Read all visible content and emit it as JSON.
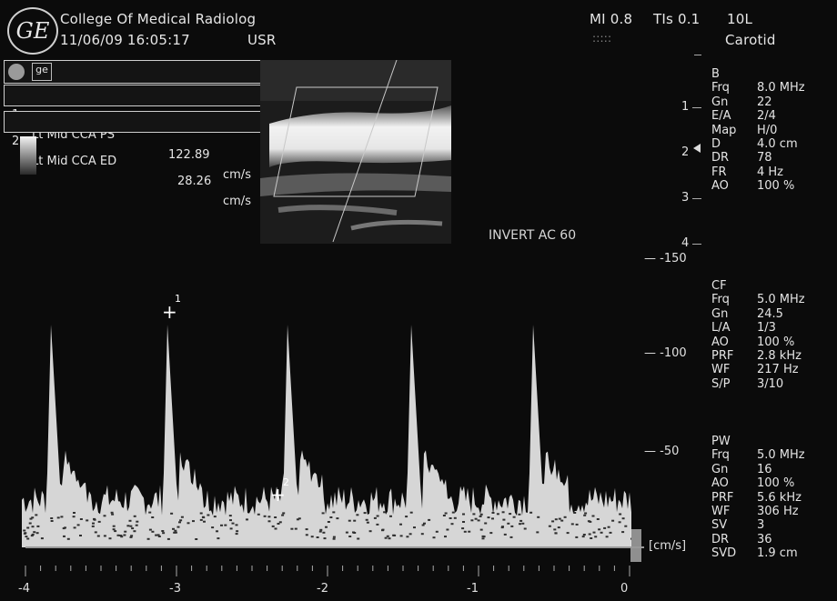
{
  "header": {
    "institution": "College Of Medical Radiolog",
    "datetime": "11/06/09 16:05:17",
    "user": "USR",
    "mi": "MI 0.8",
    "tis": "TIs 0.1",
    "probe": "10L",
    "dots": ":::::",
    "preset": "Carotid",
    "logo": "GE"
  },
  "measurements": [
    {
      "index": "1",
      "label": "Lt Mid CCA PS",
      "value": "122.89",
      "unit": "cm/s"
    },
    {
      "index": "2",
      "label": "Lt Mid CCA ED",
      "value": "28.26",
      "unit": "cm/s"
    }
  ],
  "b_mode": {
    "title": "B",
    "params": [
      {
        "k": "Frq",
        "v": "8.0 MHz"
      },
      {
        "k": "Gn",
        "v": "22"
      },
      {
        "k": "E/A",
        "v": "2/4"
      },
      {
        "k": "Map",
        "v": "H/0"
      },
      {
        "k": "D",
        "v": "4.0 cm"
      },
      {
        "k": "DR",
        "v": "78"
      },
      {
        "k": "FR",
        "v": "4 Hz"
      },
      {
        "k": "AO",
        "v": "100 %"
      }
    ],
    "depth_marks": [
      "1",
      "2",
      "3",
      "4"
    ]
  },
  "cf": {
    "title": "CF",
    "params": [
      {
        "k": "Frq",
        "v": "5.0 MHz"
      },
      {
        "k": "Gn",
        "v": "24.5"
      },
      {
        "k": "L/A",
        "v": "1/3"
      },
      {
        "k": "AO",
        "v": "100 %"
      },
      {
        "k": "PRF",
        "v": "2.8 kHz"
      },
      {
        "k": "WF",
        "v": "217 Hz"
      },
      {
        "k": "S/P",
        "v": "3/10"
      }
    ]
  },
  "pw": {
    "title": "PW",
    "params": [
      {
        "k": "Frq",
        "v": "5.0 MHz"
      },
      {
        "k": "Gn",
        "v": "16"
      },
      {
        "k": "AO",
        "v": "100 %"
      },
      {
        "k": "PRF",
        "v": "5.6 kHz"
      },
      {
        "k": "WF",
        "v": "306 Hz"
      },
      {
        "k": "SV",
        "v": "3"
      },
      {
        "k": "DR",
        "v": "36"
      },
      {
        "k": "SVD",
        "v": "1.9 cm"
      }
    ]
  },
  "spectral": {
    "invert_label": "INVERT AC 60",
    "velocity_ticks": [
      "-150",
      "-100",
      "-50"
    ],
    "unit": "[cm/s]",
    "time_ticks": [
      "-4",
      "-3",
      "-2",
      "-1",
      "0"
    ],
    "cursor1": "1",
    "cursor2": "2"
  },
  "colors": {
    "background": "#0b0b0b",
    "text": "#e4e4e4",
    "doppler_signal": "#e8e8e8"
  }
}
